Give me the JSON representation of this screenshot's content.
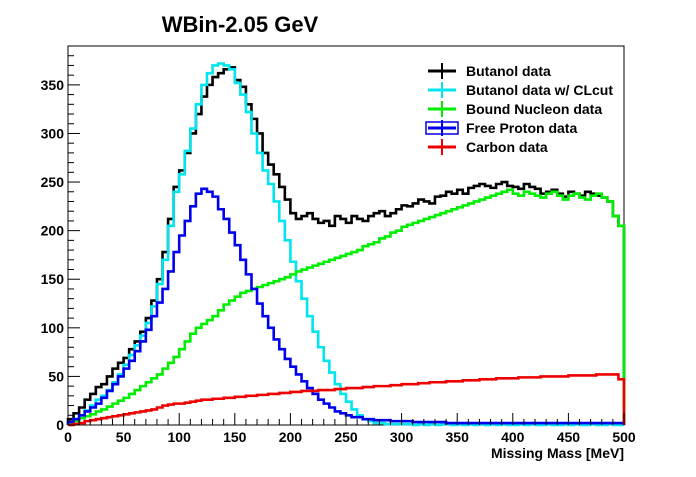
{
  "chart_data": {
    "type": "line",
    "title": "WBin-2.05 GeV",
    "xlabel": "Missing Mass [MeV]",
    "ylabel": "",
    "xlim": [
      0,
      500
    ],
    "ylim": [
      0,
      390
    ],
    "xticks": [
      0,
      50,
      100,
      150,
      200,
      250,
      300,
      350,
      400,
      450,
      500
    ],
    "yticks": [
      0,
      50,
      100,
      150,
      200,
      250,
      300,
      350
    ],
    "xtick_labels": [
      "0",
      "50",
      "100",
      "150",
      "200",
      "250",
      "300",
      "350",
      "400",
      "450",
      "500"
    ],
    "ytick_labels": [
      "0",
      "50",
      "100",
      "150",
      "200",
      "250",
      "300",
      "350"
    ],
    "grid": false,
    "legend_position": "top-right",
    "bin_width": 5,
    "series": [
      {
        "name": "Butanol data",
        "color": "#000000",
        "values": [
          6,
          12,
          18,
          26,
          32,
          39,
          42,
          50,
          58,
          64,
          69,
          78,
          86,
          96,
          110,
          128,
          150,
          178,
          212,
          245,
          262,
          280,
          300,
          320,
          338,
          350,
          358,
          362,
          366,
          368,
          355,
          348,
          330,
          315,
          300,
          280,
          268,
          258,
          245,
          232,
          218,
          212,
          215,
          218,
          212,
          208,
          210,
          205,
          215,
          212,
          208,
          215,
          212,
          210,
          215,
          218,
          220,
          215,
          218,
          222,
          226,
          225,
          228,
          232,
          230,
          228,
          235,
          236,
          240,
          238,
          242,
          238,
          244,
          246,
          248,
          246,
          244,
          248,
          250,
          246,
          245,
          243,
          248,
          245,
          243,
          238,
          240,
          242,
          238,
          235,
          240,
          238,
          236,
          240,
          238,
          236,
          234,
          230,
          215,
          205
        ]
      },
      {
        "name": "Butanol data w/ CLcut",
        "color": "#00e5ee",
        "values": [
          3,
          6,
          10,
          15,
          20,
          26,
          30,
          36,
          44,
          52,
          62,
          72,
          82,
          92,
          105,
          122,
          145,
          170,
          205,
          240,
          258,
          282,
          305,
          330,
          350,
          362,
          370,
          372,
          370,
          366,
          352,
          340,
          322,
          300,
          280,
          262,
          248,
          230,
          210,
          190,
          168,
          148,
          130,
          112,
          96,
          80,
          66,
          54,
          42,
          32,
          24,
          16,
          10,
          6,
          4,
          2,
          2,
          1,
          1,
          1,
          1,
          1,
          0,
          1,
          0,
          1,
          0,
          1,
          1,
          0,
          1,
          0,
          1,
          0,
          1,
          0,
          1,
          0,
          1,
          0,
          0,
          1,
          0,
          1,
          0,
          0,
          1,
          0,
          0,
          1,
          0,
          1,
          0,
          0,
          1,
          0,
          0,
          1,
          0,
          0
        ]
      },
      {
        "name": "Bound Nucleon data",
        "color": "#00ee00",
        "values": [
          2,
          4,
          7,
          9,
          11,
          14,
          16,
          19,
          22,
          25,
          28,
          32,
          36,
          40,
          44,
          48,
          52,
          58,
          64,
          70,
          78,
          86,
          94,
          100,
          104,
          108,
          112,
          118,
          124,
          128,
          132,
          136,
          138,
          140,
          142,
          144,
          146,
          148,
          150,
          152,
          155,
          158,
          160,
          162,
          164,
          166,
          168,
          170,
          172,
          174,
          176,
          178,
          180,
          184,
          186,
          188,
          192,
          194,
          198,
          200,
          204,
          206,
          208,
          210,
          212,
          214,
          216,
          218,
          220,
          222,
          224,
          226,
          228,
          230,
          232,
          234,
          236,
          238,
          240,
          242,
          238,
          236,
          240,
          238,
          236,
          234,
          238,
          240,
          236,
          232,
          236,
          238,
          234,
          232,
          236,
          238,
          234,
          230,
          215,
          205
        ]
      },
      {
        "name": "Free Proton data",
        "color": "#0000ee",
        "values": [
          3,
          6,
          10,
          14,
          18,
          22,
          28,
          35,
          42,
          50,
          58,
          66,
          76,
          86,
          98,
          112,
          126,
          140,
          158,
          178,
          195,
          210,
          225,
          238,
          243,
          240,
          235,
          222,
          212,
          198,
          185,
          170,
          155,
          140,
          125,
          112,
          100,
          88,
          78,
          68,
          60,
          52,
          45,
          38,
          32,
          26,
          22,
          18,
          14,
          12,
          10,
          8,
          8,
          6,
          6,
          5,
          5,
          5,
          4,
          4,
          4,
          4,
          3,
          3,
          3,
          3,
          3,
          3,
          2,
          2,
          2,
          2,
          2,
          2,
          2,
          2,
          2,
          2,
          2,
          2,
          2,
          2,
          2,
          2,
          2,
          2,
          2,
          2,
          2,
          2,
          2,
          2,
          2,
          2,
          2,
          2,
          2,
          2,
          2,
          2
        ]
      },
      {
        "name": "Carbon data",
        "color": "#ee0000",
        "values": [
          0,
          1,
          2,
          4,
          5,
          6,
          7,
          8,
          9,
          10,
          11,
          12,
          13,
          14,
          15,
          16,
          18,
          20,
          21,
          22,
          22,
          23,
          24,
          25,
          26,
          26,
          27,
          27,
          28,
          28,
          29,
          29,
          30,
          30,
          31,
          31,
          32,
          32,
          33,
          33,
          34,
          34,
          35,
          35,
          35,
          36,
          36,
          36,
          37,
          37,
          38,
          38,
          38,
          39,
          39,
          40,
          40,
          40,
          41,
          41,
          42,
          42,
          42,
          43,
          43,
          44,
          44,
          44,
          45,
          45,
          45,
          46,
          46,
          46,
          47,
          47,
          47,
          48,
          48,
          48,
          48,
          49,
          49,
          49,
          49,
          50,
          50,
          50,
          50,
          50,
          51,
          51,
          51,
          51,
          51,
          52,
          52,
          52,
          52,
          47
        ]
      }
    ]
  }
}
